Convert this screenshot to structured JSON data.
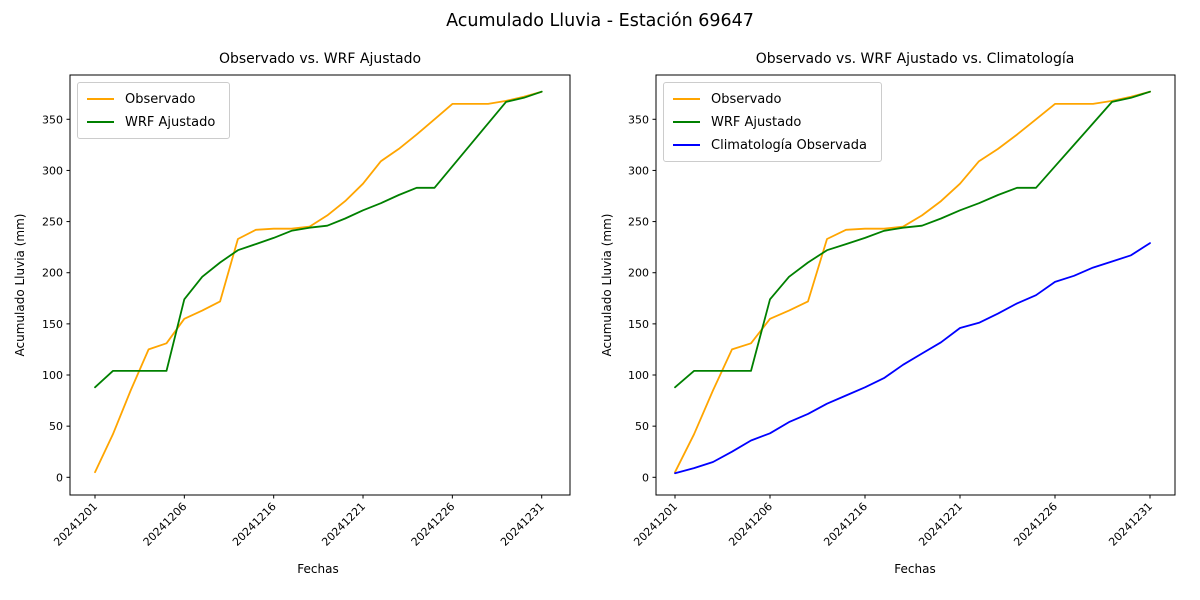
{
  "figure": {
    "title": "Acumulado Lluvia - Estación 69647"
  },
  "chart_data": [
    {
      "type": "line",
      "title": "Observado vs. WRF Ajustado",
      "xlabel": "Fechas",
      "ylabel": "Acumulado Lluvia (mm)",
      "x": [
        "20241201",
        "20241202",
        "20241203",
        "20241204",
        "20241205",
        "20241206",
        "20241207",
        "20241208",
        "20241209",
        "20241210",
        "20241216",
        "20241217",
        "20241218",
        "20241219",
        "20241220",
        "20241221",
        "20241222",
        "20241223",
        "20241224",
        "20241225",
        "20241226",
        "20241227",
        "20241228",
        "20241229",
        "20241230",
        "20241231"
      ],
      "x_tick_labels": [
        "20241201",
        "20241206",
        "20241216",
        "20241221",
        "20241226",
        "20241231"
      ],
      "x_tick_indices": [
        0,
        5,
        10,
        15,
        20,
        25
      ],
      "y_ticks": [
        0,
        50,
        100,
        150,
        200,
        250,
        300,
        350
      ],
      "ylim": [
        -15,
        395
      ],
      "grid": false,
      "legend_position": "upper left",
      "series": [
        {
          "name": "Observado",
          "color": "#FFA500",
          "values": [
            5,
            42,
            85,
            125,
            131,
            155,
            163,
            172,
            233,
            242,
            243,
            243,
            245,
            256,
            270,
            287,
            309,
            321,
            335,
            350,
            365,
            365,
            365,
            368,
            372,
            377
          ]
        },
        {
          "name": "WRF Ajustado",
          "color": "#008000",
          "values": [
            88,
            104,
            104,
            104,
            104,
            174,
            196,
            210,
            222,
            228,
            234,
            241,
            244,
            246,
            253,
            261,
            268,
            276,
            283,
            283,
            304,
            325,
            346,
            367,
            371,
            377
          ]
        }
      ]
    },
    {
      "type": "line",
      "title": "Observado vs. WRF Ajustado vs. Climatología",
      "xlabel": "Fechas",
      "ylabel": "Acumulado Lluvia (mm)",
      "x": [
        "20241201",
        "20241202",
        "20241203",
        "20241204",
        "20241205",
        "20241206",
        "20241207",
        "20241208",
        "20241209",
        "20241210",
        "20241216",
        "20241217",
        "20241218",
        "20241219",
        "20241220",
        "20241221",
        "20241222",
        "20241223",
        "20241224",
        "20241225",
        "20241226",
        "20241227",
        "20241228",
        "20241229",
        "20241230",
        "20241231"
      ],
      "x_tick_labels": [
        "20241201",
        "20241206",
        "20241216",
        "20241221",
        "20241226",
        "20241231"
      ],
      "x_tick_indices": [
        0,
        5,
        10,
        15,
        20,
        25
      ],
      "y_ticks": [
        0,
        50,
        100,
        150,
        200,
        250,
        300,
        350
      ],
      "ylim": [
        -15,
        395
      ],
      "grid": false,
      "legend_position": "upper left",
      "series": [
        {
          "name": "Observado",
          "color": "#FFA500",
          "values": [
            5,
            42,
            85,
            125,
            131,
            155,
            163,
            172,
            233,
            242,
            243,
            243,
            245,
            256,
            270,
            287,
            309,
            321,
            335,
            350,
            365,
            365,
            365,
            368,
            372,
            377
          ]
        },
        {
          "name": "WRF Ajustado",
          "color": "#008000",
          "values": [
            88,
            104,
            104,
            104,
            104,
            174,
            196,
            210,
            222,
            228,
            234,
            241,
            244,
            246,
            253,
            261,
            268,
            276,
            283,
            283,
            304,
            325,
            346,
            367,
            371,
            377
          ]
        },
        {
          "name": "Climatología Observada",
          "color": "#0000FF",
          "values": [
            4,
            9,
            15,
            25,
            36,
            43,
            54,
            62,
            72,
            80,
            88,
            97,
            110,
            121,
            132,
            146,
            151,
            160,
            170,
            178,
            191,
            197,
            205,
            211,
            217,
            229
          ]
        }
      ]
    }
  ]
}
